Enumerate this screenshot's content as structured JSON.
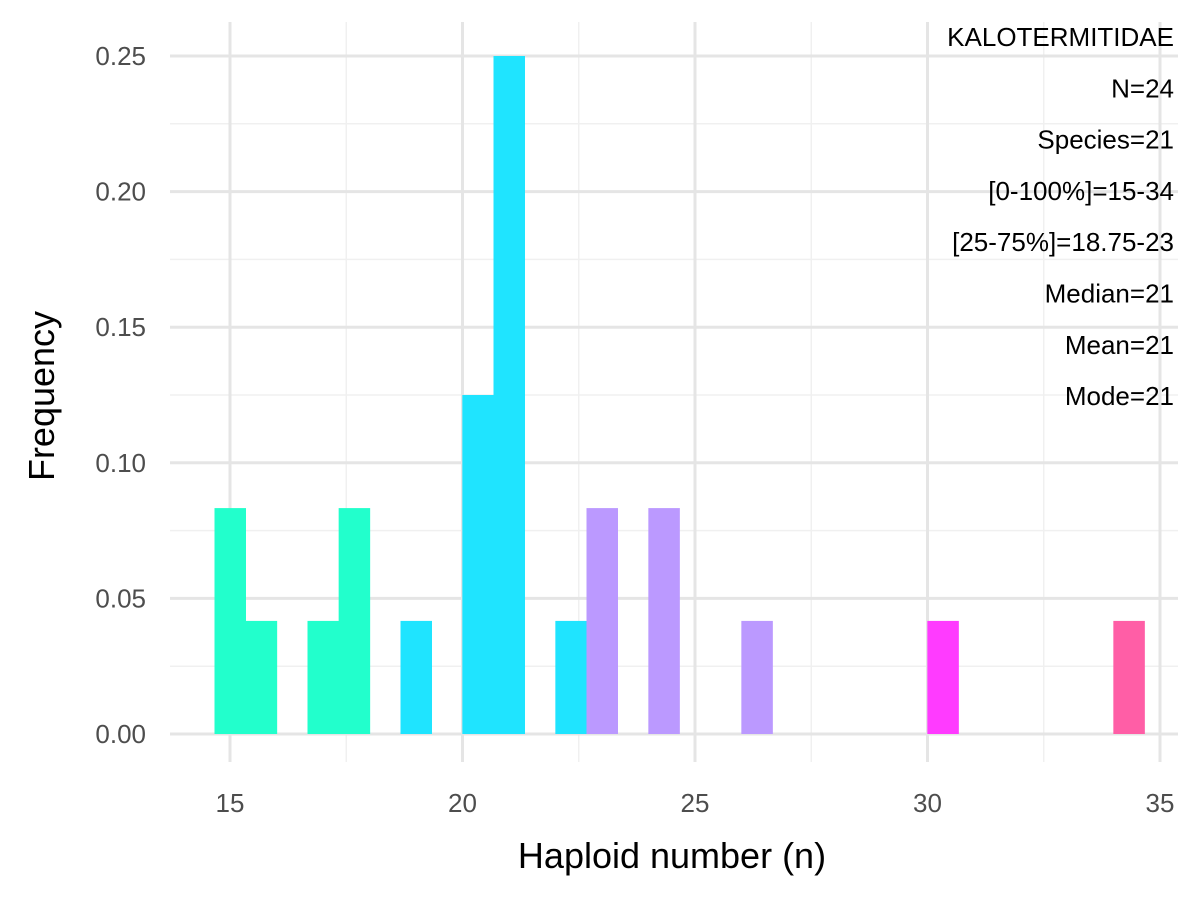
{
  "chart_data": {
    "type": "bar",
    "xlabel": "Haploid number (n)",
    "ylabel": "Frequency",
    "xlim": [
      14.5,
      35.5
    ],
    "ylim": [
      0,
      0.25
    ],
    "x_ticks": [
      15,
      20,
      25,
      30,
      35
    ],
    "x_tick_labels": [
      "15",
      "20",
      "25",
      "30",
      "35"
    ],
    "y_ticks": [
      0,
      0.05,
      0.1,
      0.15,
      0.2,
      0.25
    ],
    "y_tick_labels": [
      "0.00",
      "0.05",
      "0.10",
      "0.15",
      "0.20",
      "0.25"
    ],
    "grid": true,
    "bin_width": 0.6667,
    "bars": [
      {
        "x": 15.0,
        "value": 0.0833,
        "color": "#22FFCC"
      },
      {
        "x": 15.67,
        "value": 0.0417,
        "color": "#22FFCC"
      },
      {
        "x": 17.0,
        "value": 0.0417,
        "color": "#22FFCC"
      },
      {
        "x": 17.67,
        "value": 0.0833,
        "color": "#22FFCC"
      },
      {
        "x": 19.0,
        "value": 0.0417,
        "color": "#1FE4FF"
      },
      {
        "x": 20.33,
        "value": 0.125,
        "color": "#1FE4FF"
      },
      {
        "x": 21.0,
        "value": 0.25,
        "color": "#1FE4FF"
      },
      {
        "x": 22.33,
        "value": 0.0417,
        "color": "#1FE4FF"
      },
      {
        "x": 23.0,
        "value": 0.0833,
        "color": "#BB99FF"
      },
      {
        "x": 24.33,
        "value": 0.0833,
        "color": "#BB99FF"
      },
      {
        "x": 26.33,
        "value": 0.0417,
        "color": "#BB99FF"
      },
      {
        "x": 30.33,
        "value": 0.0417,
        "color": "#FF3BFF"
      },
      {
        "x": 34.33,
        "value": 0.0417,
        "color": "#FF5EA6"
      }
    ],
    "annotations": [
      "KALOTERMITIDAE",
      "N=24",
      "Species=21",
      "[0-100%]=15-34",
      "[25-75%]=18.75-23",
      "Median=21",
      "Mean=21",
      "Mode=21"
    ],
    "colors": {
      "background": "#ffffff",
      "grid_major": "#e5e5e5",
      "grid_minor": "#f0f0f0",
      "tick_text": "#4d4d4d"
    }
  }
}
